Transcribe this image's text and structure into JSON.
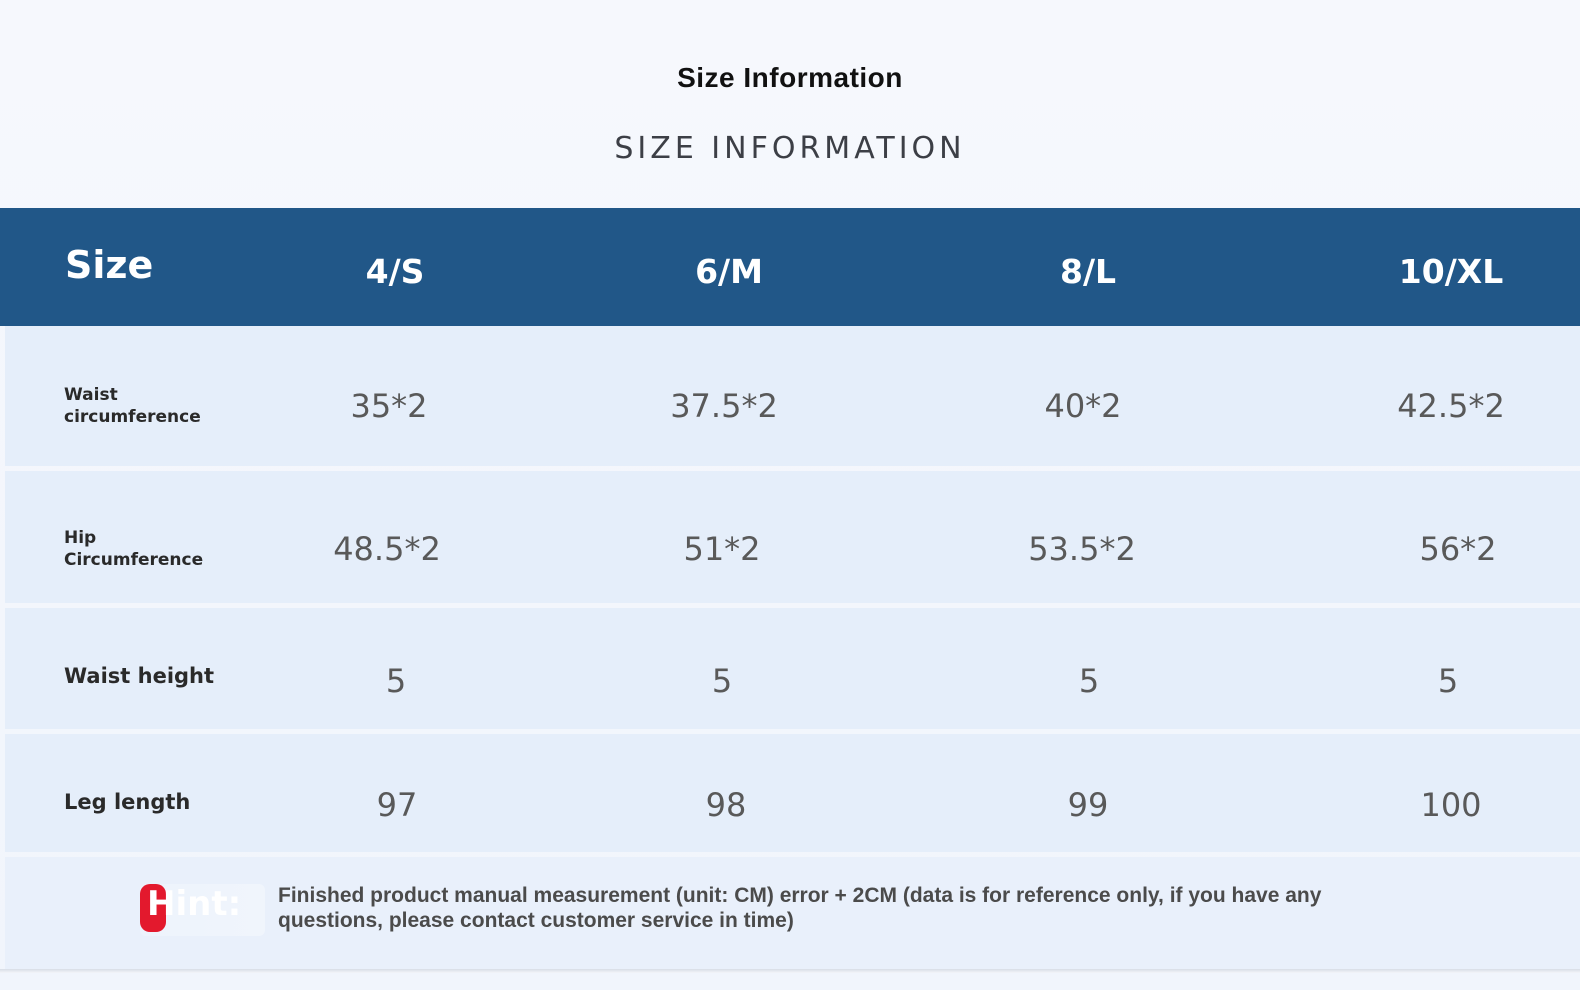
{
  "title": "Size Information",
  "subtitle": "SIZE INFORMATION",
  "table": {
    "header_label": "Size",
    "sizes": [
      "4/S",
      "6/M",
      "8/L",
      "10/XL"
    ],
    "rows": [
      {
        "label_line1": "Waist",
        "label_line2": "circumference",
        "values": [
          "35*2",
          "37.5*2",
          "40*2",
          "42.5*2"
        ]
      },
      {
        "label_line1": "Hip",
        "label_line2": "Circumference",
        "values": [
          "48.5*2",
          "51*2",
          "53.5*2",
          "56*2"
        ]
      },
      {
        "label": "Waist height",
        "values": [
          "5",
          "5",
          "5",
          "5"
        ]
      },
      {
        "label": "Leg length",
        "values": [
          "97",
          "98",
          "99",
          "100"
        ]
      }
    ]
  },
  "hint": {
    "label": "Hint:",
    "text_line1": "Finished product manual measurement (unit: CM) error + 2CM (data is for reference only, if you have any",
    "text_line2": "questions, please contact customer service in time)"
  },
  "colors": {
    "header_background": "#215788",
    "row_background": "#e5eefa",
    "hint_accent": "#e3192d"
  }
}
